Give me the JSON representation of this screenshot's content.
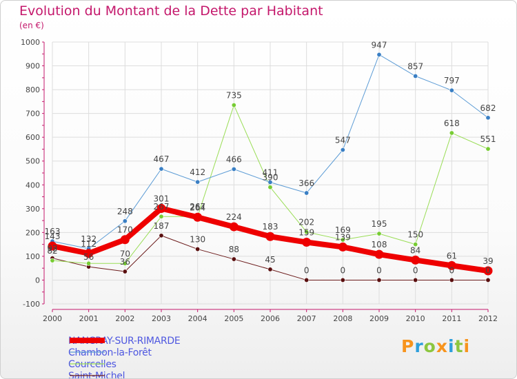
{
  "colors": {
    "title": "#c4176b",
    "axis": "#444444",
    "grid": "#dddddd",
    "legend_text": "#4e57e0"
  },
  "logo": {
    "letters": [
      "P",
      "r",
      "o",
      "x",
      "i",
      "t",
      "i"
    ],
    "colors": [
      "#f7941d",
      "#2e9fdc",
      "#8cc63f",
      "#f7941d",
      "#2e9fdc",
      "#8cc63f",
      "#f7941d"
    ]
  },
  "chart_data": {
    "type": "line",
    "title": "Evolution du Montant de la Dette par Habitant",
    "subtitle": "(en €)",
    "xlabel": "",
    "ylabel": "",
    "ylim": [
      -100,
      1000
    ],
    "yticks": [
      -100,
      0,
      100,
      200,
      300,
      400,
      500,
      600,
      700,
      800,
      900,
      1000
    ],
    "x": [
      "2000",
      "2001",
      "2002",
      "2003",
      "2004",
      "2005",
      "2006",
      "2007",
      "2008",
      "2009",
      "2010",
      "2011",
      "2012"
    ],
    "grid": true,
    "legend_position": "bottom-left",
    "series": [
      {
        "name": "Saint-Michel",
        "color": "#6b1a1a",
        "point_color": "#5a0f0f",
        "width": 1,
        "values": [
          92,
          56,
          36,
          187,
          130,
          88,
          45,
          0,
          0,
          0,
          0,
          0,
          0
        ],
        "labels": [
          "92",
          "56",
          "36",
          "187",
          "130",
          "88",
          "45",
          "0",
          "0",
          "0",
          "0",
          "0",
          "0"
        ]
      },
      {
        "name": "Courcelles",
        "color": "#99dd55",
        "point_color": "#77cc33",
        "width": 1,
        "values": [
          82,
          70,
          70,
          267,
          267,
          735,
          390,
          202,
          169,
          195,
          150,
          618,
          551
        ],
        "labels": [
          "82",
          "",
          "70",
          "267",
          "267",
          "735",
          "390",
          "202",
          "169",
          "195",
          "150",
          "618",
          "551"
        ]
      },
      {
        "name": "Chambon-la-Forêt",
        "color": "#5b9bd5",
        "point_color": "#3a7fc4",
        "width": 1,
        "values": [
          163,
          132,
          248,
          467,
          412,
          466,
          411,
          366,
          547,
          947,
          857,
          797,
          682
        ],
        "labels": [
          "163",
          "132",
          "248",
          "467",
          "412",
          "466",
          "411",
          "366",
          "547",
          "947",
          "857",
          "797",
          "682"
        ]
      },
      {
        "name": "NANCRAY-SUR-RIMARDE",
        "color": "#ee0000",
        "point_color": "#ee0000",
        "width": 8,
        "values": [
          143,
          112,
          170,
          301,
          264,
          224,
          183,
          159,
          139,
          108,
          84,
          61,
          39
        ],
        "labels": [
          "143",
          "112",
          "170",
          "301",
          "264",
          "224",
          "183",
          "159",
          "139",
          "108",
          "84",
          "61",
          "39"
        ]
      }
    ]
  }
}
